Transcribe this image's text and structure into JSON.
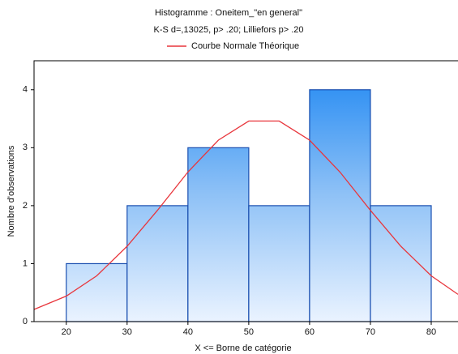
{
  "chart_data": {
    "type": "histogram",
    "title": "Histogramme : Oneitem_\"en general\"",
    "subtitle": "K-S d=,13025, p> .20; Lilliefors p> .20",
    "xlabel": "X <= Borne de catégorie",
    "ylabel": "Nombre d'observations",
    "bins": [
      20,
      30,
      40,
      50,
      60,
      70,
      80
    ],
    "values": [
      1,
      2,
      3,
      2,
      4,
      2
    ],
    "color": "#1c86f2",
    "curve": {
      "name": "Courbe Normale Théorique",
      "color": "#e8363c",
      "x": [
        14.7,
        20,
        25,
        30,
        35,
        40,
        45,
        50,
        55,
        60,
        65,
        70,
        75,
        80,
        84.4
      ],
      "values": [
        0.21,
        0.44,
        0.79,
        1.3,
        1.92,
        2.58,
        3.13,
        3.46,
        3.46,
        3.13,
        2.58,
        1.92,
        1.3,
        0.79,
        0.47
      ]
    },
    "xlim": [
      14.7,
      84.4
    ],
    "ylim": [
      0,
      4.5
    ],
    "xticks": [
      20,
      30,
      40,
      50,
      60,
      70,
      80
    ],
    "yticks": [
      0,
      1,
      2,
      3,
      4
    ]
  }
}
